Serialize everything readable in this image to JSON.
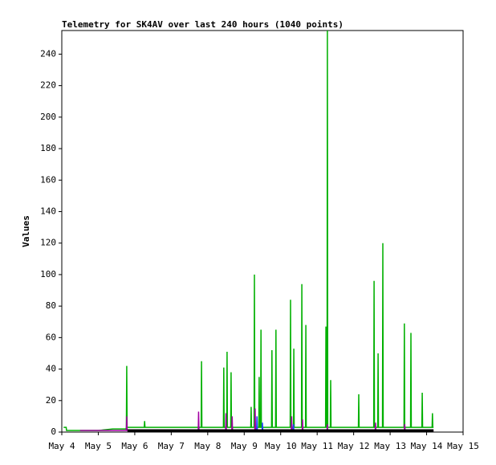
{
  "chart_data": {
    "type": "line",
    "title": "Telemetry for SK4AV over last 240 hours (1040 points)",
    "ylabel": "Values",
    "xlim": [
      4,
      15
    ],
    "xticks": [
      {
        "value": 4,
        "label": "May 4"
      },
      {
        "value": 5,
        "label": "May 5"
      },
      {
        "value": 6,
        "label": "May 6"
      },
      {
        "value": 7,
        "label": "May 7"
      },
      {
        "value": 8,
        "label": "May 8"
      },
      {
        "value": 9,
        "label": "May 9"
      },
      {
        "value": 10,
        "label": "May 10"
      },
      {
        "value": 11,
        "label": "May 11"
      },
      {
        "value": 12,
        "label": "May 12"
      },
      {
        "value": 13,
        "label": "May 13"
      },
      {
        "value": 14,
        "label": "May 14"
      },
      {
        "value": 15,
        "label": "May 15"
      }
    ],
    "ylim": [
      0,
      255
    ],
    "yticks": [
      0,
      20,
      40,
      60,
      80,
      100,
      120,
      140,
      160,
      180,
      200,
      220,
      240
    ],
    "series": [
      {
        "color": "#00b000",
        "x": [
          4.05,
          4.12,
          4.13,
          5.0,
          5.4,
          5.76,
          5.77,
          5.78,
          5.79,
          6.26,
          6.27,
          6.28,
          7.0,
          7.82,
          7.83,
          7.84,
          8.43,
          8.44,
          8.45,
          8.52,
          8.53,
          8.54,
          8.63,
          8.64,
          8.65,
          9.18,
          9.19,
          9.2,
          9.27,
          9.28,
          9.29,
          9.4,
          9.41,
          9.42,
          9.45,
          9.46,
          9.47,
          9.75,
          9.76,
          9.77,
          9.86,
          9.87,
          9.88,
          10.26,
          10.27,
          10.28,
          10.35,
          10.36,
          10.37,
          10.57,
          10.58,
          10.59,
          10.68,
          10.69,
          10.7,
          11.23,
          11.24,
          11.25,
          11.27,
          11.28,
          11.29,
          11.36,
          11.37,
          11.38,
          12.13,
          12.14,
          12.15,
          12.55,
          12.56,
          12.57,
          12.66,
          12.67,
          12.68,
          12.79,
          12.8,
          12.81,
          13.38,
          13.39,
          13.4,
          13.56,
          13.57,
          13.58,
          13.87,
          13.88,
          13.89,
          14.15,
          14.16,
          14.17,
          14.19
        ],
        "values": [
          3,
          3,
          1,
          1,
          2,
          2,
          3,
          42,
          3,
          3,
          7,
          3,
          3,
          3,
          45,
          3,
          3,
          41,
          3,
          3,
          51,
          3,
          3,
          38,
          3,
          3,
          16,
          3,
          3,
          100,
          3,
          3,
          35,
          3,
          3,
          65,
          3,
          3,
          52,
          3,
          3,
          65,
          3,
          3,
          84,
          3,
          3,
          53,
          3,
          3,
          94,
          3,
          3,
          68,
          3,
          3,
          67,
          3,
          3,
          255,
          3,
          3,
          33,
          3,
          3,
          24,
          3,
          3,
          96,
          3,
          3,
          50,
          3,
          3,
          120,
          3,
          3,
          69,
          3,
          3,
          63,
          3,
          3,
          25,
          3,
          3,
          12,
          3,
          3
        ]
      },
      {
        "color": "#a000a0",
        "x": [
          4.5,
          5.77,
          5.78,
          5.79,
          7.74,
          7.75,
          7.76,
          8.49,
          8.5,
          8.51,
          8.66,
          8.67,
          8.68,
          9.29,
          9.3,
          9.31,
          10.29,
          10.3,
          10.31,
          10.59,
          10.6,
          10.61,
          11.27,
          11.28,
          11.29,
          12.59,
          12.6,
          12.61,
          13.39,
          13.4,
          13.41,
          14.19
        ],
        "values": [
          1,
          1,
          10,
          1,
          1,
          13,
          1,
          1,
          12,
          1,
          1,
          10,
          1,
          1,
          15,
          1,
          1,
          10,
          1,
          1,
          8,
          1,
          1,
          5,
          1,
          1,
          6,
          1,
          1,
          5,
          1,
          1
        ]
      },
      {
        "color": "#2040ff",
        "x": [
          9.0,
          9.34,
          9.35,
          9.36,
          9.49,
          9.5,
          9.51,
          10.34,
          10.35,
          10.36,
          11.0
        ],
        "values": [
          1,
          1,
          10,
          1,
          1,
          6,
          1,
          1,
          5,
          1,
          1
        ]
      },
      {
        "color": "#000000",
        "x": [
          5.8,
          14.19
        ],
        "values": [
          1,
          1
        ]
      }
    ]
  }
}
